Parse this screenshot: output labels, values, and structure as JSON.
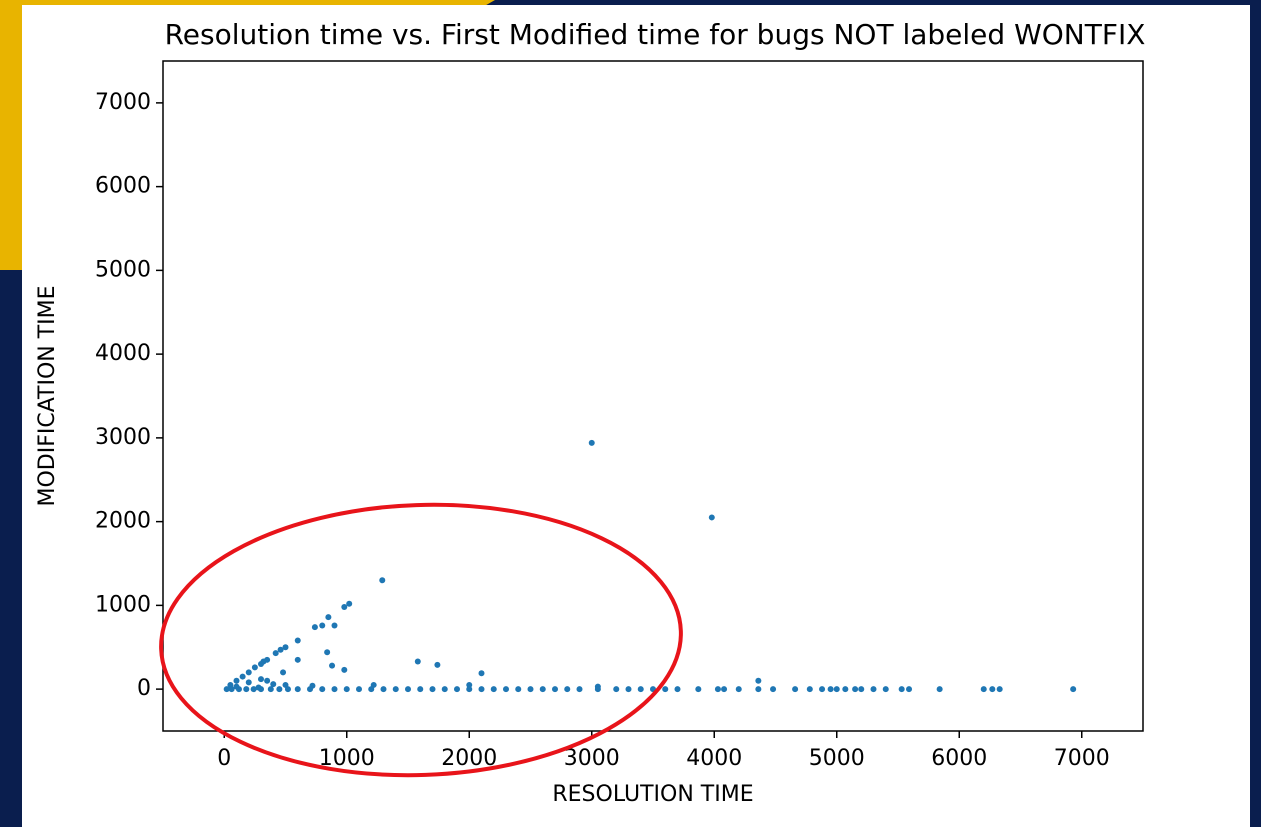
{
  "chart_data": {
    "type": "scatter",
    "title": "Resolution time vs. First Modified time for bugs NOT labeled WONTFIX",
    "xlabel": "RESOLUTION TIME",
    "ylabel": "MODIFICATION TIME",
    "color": "#1f77b4",
    "xlim": [
      -500,
      7500
    ],
    "ylim": [
      -500,
      7500
    ],
    "xticks": [
      0,
      1000,
      2000,
      3000,
      4000,
      5000,
      6000,
      7000
    ],
    "yticks": [
      0,
      1000,
      2000,
      3000,
      4000,
      5000,
      6000,
      7000
    ],
    "x": [
      3000,
      3980,
      1290,
      1020,
      980,
      850,
      900,
      800,
      740,
      600,
      500,
      460,
      420,
      350,
      320,
      300,
      250,
      200,
      150,
      100,
      50,
      840,
      880,
      980,
      600,
      480,
      1580,
      1740,
      2100,
      4360,
      2000,
      100,
      200,
      300,
      350,
      400,
      500,
      720,
      1220,
      3050,
      280,
      20,
      60,
      120,
      180,
      240,
      300,
      380,
      450,
      520,
      600,
      700,
      800,
      900,
      1000,
      1100,
      1200,
      1300,
      1400,
      1500,
      1600,
      1700,
      1800,
      1900,
      2000,
      2100,
      2200,
      2300,
      2400,
      2500,
      2600,
      2700,
      2800,
      2900,
      3050,
      3200,
      3300,
      3400,
      3500,
      3600,
      3700,
      3870,
      4030,
      4080,
      4200,
      4360,
      4480,
      4660,
      4780,
      4880,
      4950,
      5000,
      5070,
      5150,
      5200,
      5300,
      5400,
      5530,
      5590,
      5840,
      6200,
      6270,
      6330,
      6930
    ],
    "values": [
      2940,
      2050,
      1300,
      1020,
      980,
      860,
      760,
      760,
      740,
      580,
      500,
      470,
      430,
      350,
      330,
      300,
      260,
      200,
      150,
      100,
      50,
      440,
      280,
      230,
      350,
      200,
      330,
      290,
      190,
      100,
      50,
      30,
      80,
      120,
      100,
      60,
      50,
      40,
      50,
      30,
      20,
      0,
      0,
      0,
      0,
      0,
      0,
      0,
      0,
      0,
      0,
      0,
      0,
      0,
      0,
      0,
      0,
      0,
      0,
      0,
      0,
      0,
      0,
      0,
      0,
      0,
      0,
      0,
      0,
      0,
      0,
      0,
      0,
      0,
      0,
      0,
      0,
      0,
      0,
      0,
      0,
      0,
      0,
      0,
      0,
      0,
      0,
      0,
      0,
      0,
      0,
      0,
      0,
      0,
      0,
      0,
      0,
      0,
      0,
      0,
      0,
      0,
      0,
      0
    ]
  }
}
